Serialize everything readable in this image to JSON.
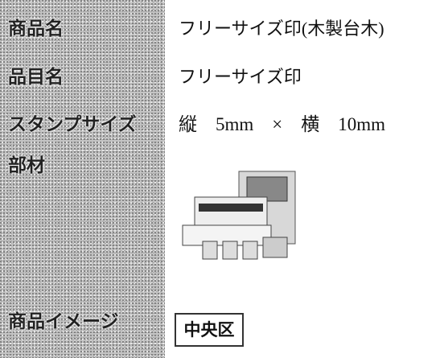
{
  "table": {
    "rows": [
      {
        "label": "商品名",
        "value": "フリーサイズ印(木製台木)"
      },
      {
        "label": "品目名",
        "value": "フリーサイズ印"
      },
      {
        "label": "スタンプサイズ",
        "value": "縦　5mm　×　横　10mm"
      },
      {
        "label": "部材"
      },
      {
        "label": "商品イメージ"
      }
    ]
  },
  "stamp_image": {
    "text": "中央区"
  }
}
